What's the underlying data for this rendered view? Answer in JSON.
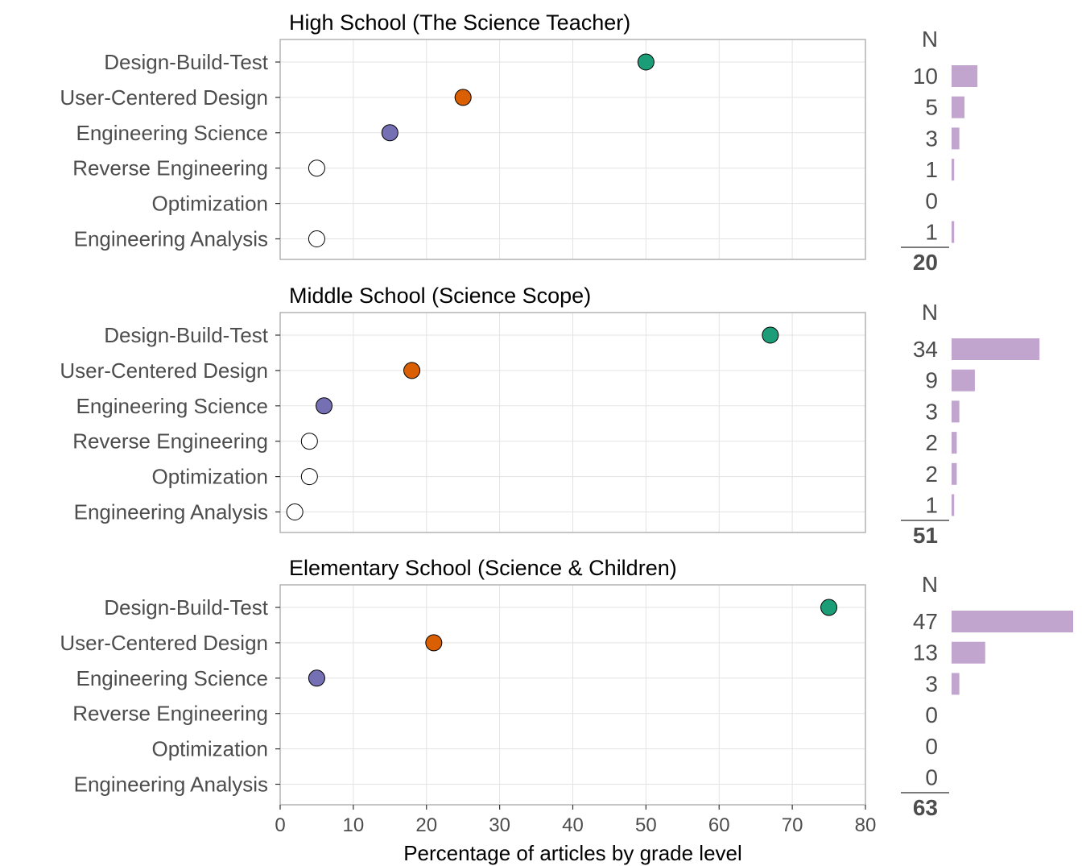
{
  "chart_data": {
    "type": "scatter",
    "xlabel": "Percentage of articles by grade level",
    "xlim": [
      0,
      80
    ],
    "x_ticks": [
      0,
      10,
      20,
      30,
      40,
      50,
      60,
      70,
      80
    ],
    "grid": true,
    "categories": [
      "Design-Build-Test",
      "User-Centered Design",
      "Engineering Science",
      "Reverse Engineering",
      "Optimization",
      "Engineering Analysis"
    ],
    "category_colors": [
      "#1b9e77",
      "#d95f02",
      "#7570b3",
      "#ffffff",
      "#ffffff",
      "#ffffff"
    ],
    "count_bar_color": "#c2a5cf",
    "count_header": "N",
    "panels": [
      {
        "title": "High School (The Science Teacher)",
        "values": [
          50,
          25,
          15,
          5,
          0,
          5
        ],
        "counts": [
          10,
          5,
          3,
          1,
          0,
          1
        ],
        "total": 20
      },
      {
        "title": "Middle School (Science Scope)",
        "values": [
          67,
          18,
          6,
          4,
          4,
          2
        ],
        "counts": [
          34,
          9,
          3,
          2,
          2,
          1
        ],
        "total": 51
      },
      {
        "title": "Elementary School (Science & Children)",
        "values": [
          75,
          21,
          5,
          0,
          0,
          0
        ],
        "counts": [
          47,
          13,
          3,
          0,
          0,
          0
        ],
        "total": 63
      }
    ]
  }
}
